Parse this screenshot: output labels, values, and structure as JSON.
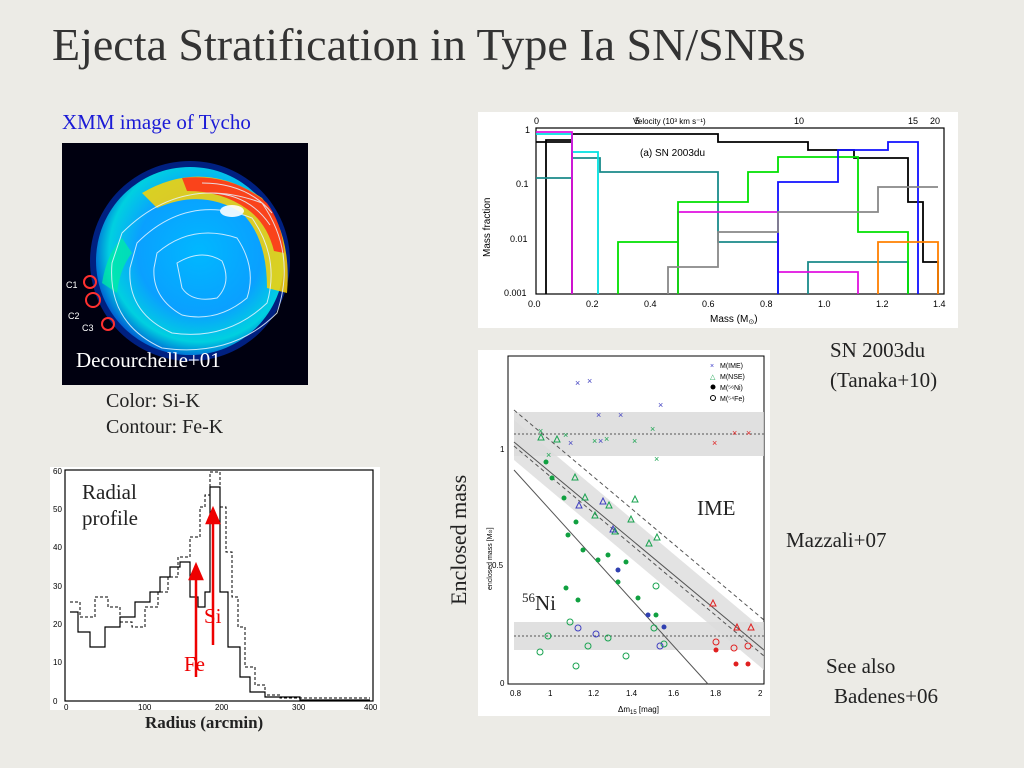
{
  "slide": {
    "title": "Ejecta Stratification in Type Ia SN/SNRs",
    "xmm_caption": "XMM image of Tycho",
    "decourchelle": "Decourchelle+01",
    "color_line": "Color: Si-K",
    "contour_line": "Contour: Fe-K",
    "c1": "C1",
    "c2": "C2",
    "c3": "C3",
    "radial_1": "Radial",
    "radial_2": "profile",
    "si": "Si",
    "fe": "Fe",
    "radius_label": "Radius (arcmin)",
    "sn_caption_1": "SN 2003du",
    "sn_caption_2": "(Tanaka+10)",
    "enclosed_mass": "Enclosed mass",
    "ime": "IME",
    "ni_sup": "56",
    "ni": "Ni",
    "mazzali": "Mazzali+07",
    "see_also_1": "See also",
    "see_also_2": "Badenes+06"
  },
  "radial_axes": {
    "y_ticks": [
      "0",
      "10",
      "20",
      "30",
      "40",
      "50",
      "60"
    ],
    "x_ticks": [
      "0",
      "100",
      "200",
      "300",
      "400"
    ]
  },
  "tanaka_axes": {
    "top_label": "Velocity (10³ km s⁻¹)",
    "top_ticks": [
      "0",
      "5",
      "10",
      "15",
      "20"
    ],
    "y_ticks": [
      "1",
      "0.1",
      "0.01",
      "0.001"
    ],
    "x_ticks": [
      "0.0",
      "0.2",
      "0.4",
      "0.6",
      "0.8",
      "1.0",
      "1.2",
      "1.4"
    ],
    "ylabel": "Mass fraction",
    "xlabel": "Mass (M",
    "inset": "(a) SN 2003du"
  },
  "mazzali_axes": {
    "y_ticks": [
      "1",
      "0.5",
      "0"
    ],
    "x_ticks": [
      "0.8",
      "1",
      "1.2",
      "1.4",
      "1.6",
      "1.8",
      "2"
    ],
    "ylabel": "enclosed mass [M",
    "xlabel": "Δm",
    "legend": [
      "M(IME)",
      "M(NSE)",
      "M(⁵⁶Ni)",
      "M(⁵⁴Fe)"
    ]
  }
}
